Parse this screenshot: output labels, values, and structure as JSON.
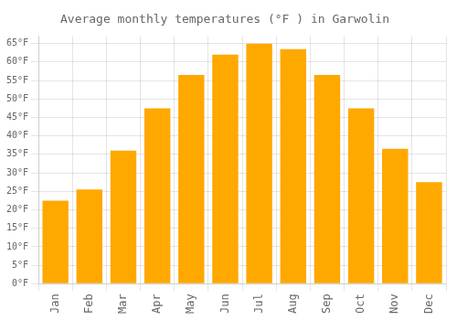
{
  "chart_data": {
    "type": "bar",
    "title": "Average monthly temperatures (°F ) in Garwolin",
    "categories": [
      "Jan",
      "Feb",
      "Mar",
      "Apr",
      "May",
      "Jun",
      "Jul",
      "Aug",
      "Sep",
      "Oct",
      "Nov",
      "Dec"
    ],
    "values": [
      22.5,
      25.5,
      36.0,
      47.5,
      56.5,
      62.0,
      65.0,
      63.5,
      56.5,
      47.5,
      36.5,
      27.5
    ],
    "color": "#FFA800",
    "ylim": [
      0,
      67
    ],
    "yticks": [
      {
        "value": 0,
        "label": "0°F"
      },
      {
        "value": 5,
        "label": "5°F"
      },
      {
        "value": 10,
        "label": "10°F"
      },
      {
        "value": 15,
        "label": "15°F"
      },
      {
        "value": 20,
        "label": "20°F"
      },
      {
        "value": 25,
        "label": "25°F"
      },
      {
        "value": 30,
        "label": "30°F"
      },
      {
        "value": 35,
        "label": "35°F"
      },
      {
        "value": 40,
        "label": "40°F"
      },
      {
        "value": 45,
        "label": "45°F"
      },
      {
        "value": 50,
        "label": "50°F"
      },
      {
        "value": 55,
        "label": "55°F"
      },
      {
        "value": 60,
        "label": "60°F"
      },
      {
        "value": 65,
        "label": "65°F"
      }
    ],
    "grid": true
  }
}
